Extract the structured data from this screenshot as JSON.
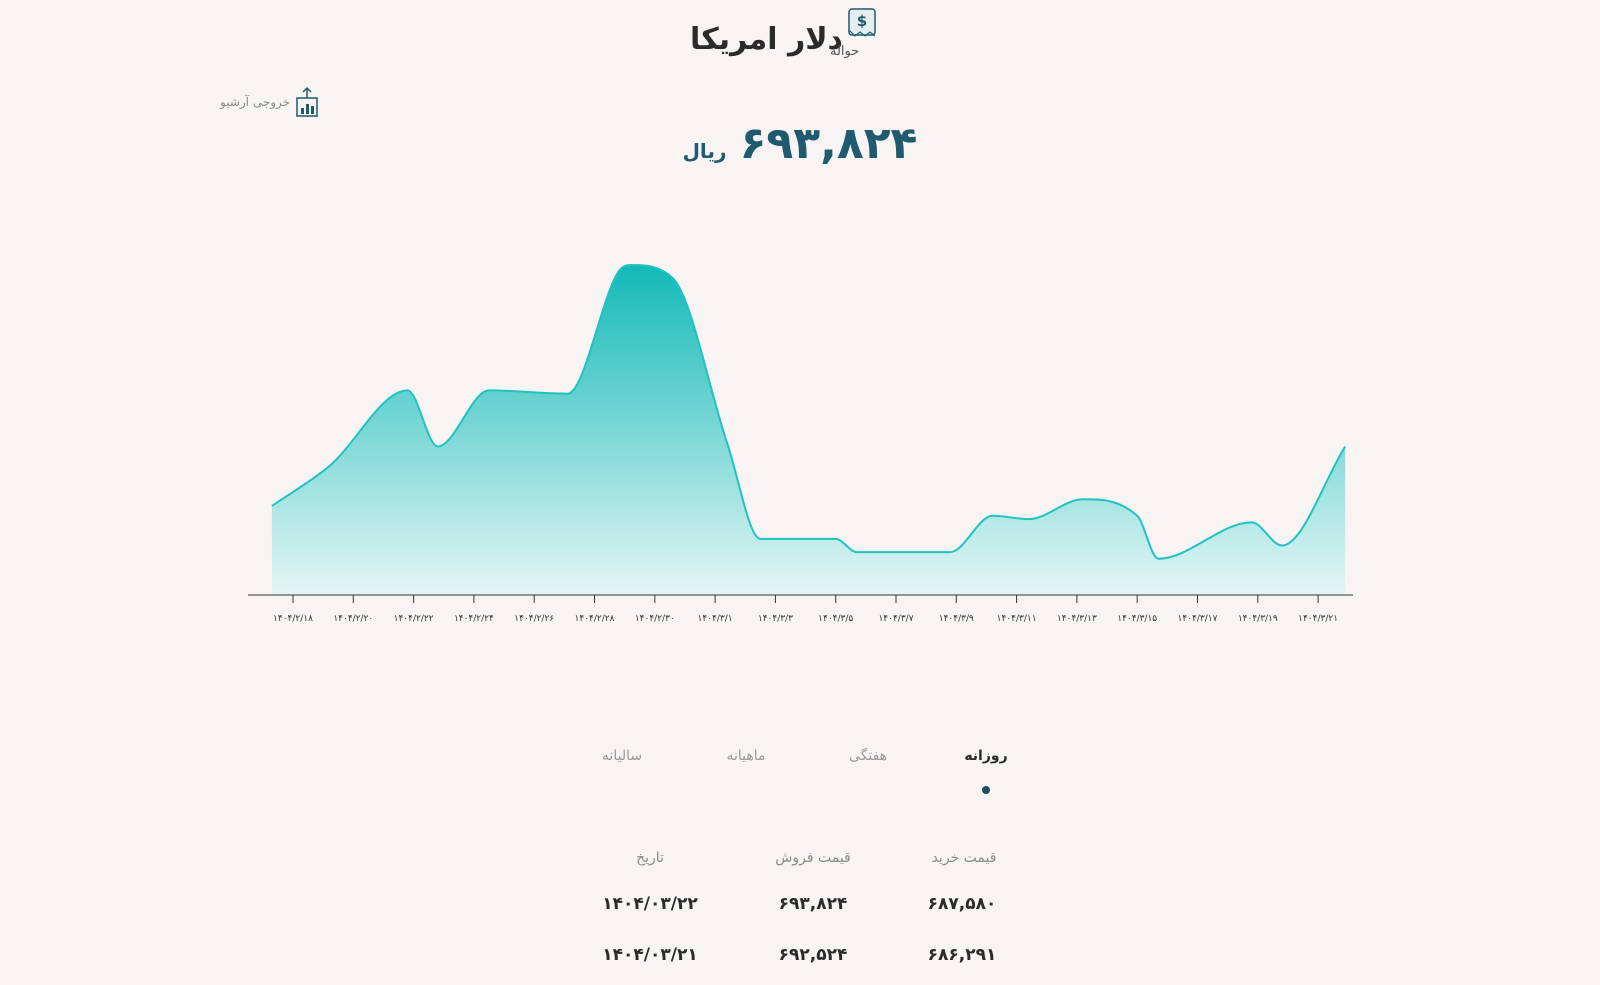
{
  "header": {
    "title": "دلار امریکا",
    "subtitle": "حواله",
    "icon": "dollar-receipt-icon"
  },
  "archive": {
    "label": "خروجی آرشیو",
    "icon": "chart-export-icon"
  },
  "price": {
    "value": "۶۹۳,۸۲۴",
    "unit": "ریال"
  },
  "chart_data": {
    "type": "area",
    "x_ticks": [
      "۱۴۰۴/۲/۱۸",
      "۱۴۰۴/۲/۲۰",
      "۱۴۰۴/۲/۲۲",
      "۱۴۰۴/۲/۲۴",
      "۱۴۰۴/۲/۲۶",
      "۱۴۰۴/۲/۲۸",
      "۱۴۰۴/۲/۳۰",
      "۱۴۰۴/۳/۱",
      "۱۴۰۴/۳/۳",
      "۱۴۰۴/۳/۵",
      "۱۴۰۴/۳/۷",
      "۱۴۰۴/۳/۹",
      "۱۴۰۴/۳/۱۱",
      "۱۴۰۴/۳/۱۳",
      "۱۴۰۴/۳/۱۵",
      "۱۴۰۴/۳/۱۷",
      "۱۴۰۴/۳/۱۹",
      "۱۴۰۴/۳/۲۱"
    ],
    "series": [
      {
        "values": [
          0.27,
          0.39,
          0.62,
          0.45,
          0.62,
          0.61,
          0.98,
          1.0,
          0.96,
          0.46,
          0.17,
          0.17,
          0.13,
          0.13,
          0.24,
          0.23,
          0.29,
          0.24,
          0.11,
          0.22,
          0.15,
          0.45
        ]
      }
    ],
    "x_positions": [
      -0.35,
      0.6,
      1.9,
      2.4,
      3.25,
      4.55,
      5.4,
      5.6,
      6.3,
      7.2,
      7.75,
      9.0,
      9.35,
      10.9,
      11.6,
      12.2,
      13.1,
      14.0,
      14.35,
      15.9,
      16.4,
      17.45
    ],
    "y_range": [
      0,
      1
    ],
    "colors": {
      "line": "#1fc3c1",
      "fill_top": "#12b9b7",
      "fill_bottom": "#e4f6f5",
      "axis": "#333333"
    },
    "grid": false,
    "legend": "none"
  },
  "tabs": {
    "daily": "روزانه",
    "weekly": "هفتگی",
    "monthly": "ماهیانه",
    "yearly": "سالیانه",
    "active": "daily"
  },
  "table": {
    "headers": {
      "buy": "قیمت خرید",
      "sell": "قیمت فروش",
      "date": "تاریخ"
    },
    "rows": [
      {
        "buy": "۶۸۷,۵۸۰",
        "sell": "۶۹۳,۸۲۴",
        "date": "۱۴۰۴/۰۳/۲۲"
      },
      {
        "buy": "۶۸۶,۲۹۱",
        "sell": "۶۹۲,۵۲۴",
        "date": "۱۴۰۴/۰۳/۲۱"
      }
    ]
  }
}
